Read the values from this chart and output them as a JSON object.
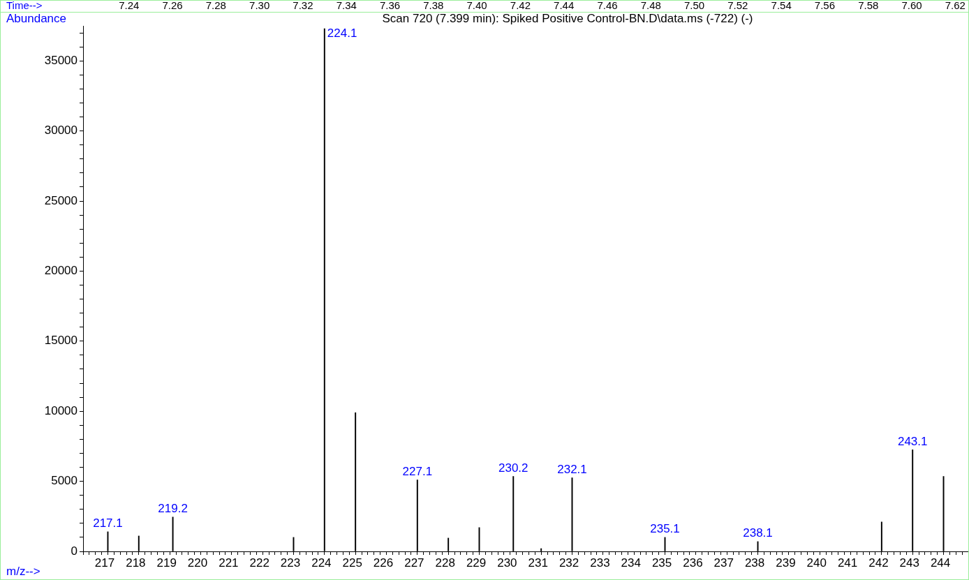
{
  "chart_data": {
    "type": "bar",
    "title": "Scan 720 (7.399 min): Spiked Positive Control-BN.D\\data.ms (-722) (-)",
    "xlabel": "m/z-->",
    "ylabel": "Abundance",
    "x2label": "Time-->",
    "x": [
      217.1,
      218.1,
      219.2,
      223.1,
      224.1,
      225.1,
      227.1,
      228.1,
      229.1,
      230.2,
      231.1,
      232.1,
      235.1,
      238.1,
      242.1,
      243.1,
      244.1
    ],
    "series": [
      {
        "color": "#000000",
        "values": [
          1400,
          1100,
          2450,
          1000,
          37300,
          9900,
          5100,
          950,
          1700,
          5350,
          200,
          5250,
          1000,
          700,
          2100,
          7250,
          5350
        ]
      }
    ],
    "annotations": [
      {
        "text": "217.1",
        "x": 217.1,
        "y": 1400
      },
      {
        "text": "219.2",
        "x": 219.2,
        "y": 2450
      },
      {
        "text": "224.1",
        "x": 224.1,
        "y": 37300
      },
      {
        "text": "227.1",
        "x": 227.1,
        "y": 5100
      },
      {
        "text": "230.2",
        "x": 230.2,
        "y": 5350
      },
      {
        "text": "232.1",
        "x": 232.1,
        "y": 5250
      },
      {
        "text": "235.1",
        "x": 235.1,
        "y": 1000
      },
      {
        "text": "238.1",
        "x": 238.1,
        "y": 700
      },
      {
        "text": "243.1",
        "x": 243.1,
        "y": 7250
      }
    ],
    "xlim": [
      216.3,
      244.9
    ],
    "xticks": [
      {
        "value": 216.4,
        "label": null
      },
      {
        "value": 216.6,
        "label": null
      },
      {
        "value": 216.8,
        "label": null
      },
      217,
      {
        "value": 217.2,
        "label": null
      },
      {
        "value": 217.4,
        "label": null
      },
      {
        "value": 217.6,
        "label": null
      },
      {
        "value": 217.8,
        "label": null
      },
      218,
      {
        "value": 218.2,
        "label": null
      },
      {
        "value": 218.4,
        "label": null
      },
      {
        "value": 218.6,
        "label": null
      },
      {
        "value": 218.8,
        "label": null
      },
      219,
      {
        "value": 219.2,
        "label": null
      },
      {
        "value": 219.4,
        "label": null
      },
      {
        "value": 219.6,
        "label": null
      },
      {
        "value": 219.8,
        "label": null
      },
      220,
      {
        "value": 220.2,
        "label": null
      },
      {
        "value": 220.4,
        "label": null
      },
      {
        "value": 220.6,
        "label": null
      },
      {
        "value": 220.8,
        "label": null
      },
      221,
      {
        "value": 221.2,
        "label": null
      },
      {
        "value": 221.4,
        "label": null
      },
      {
        "value": 221.6,
        "label": null
      },
      {
        "value": 221.8,
        "label": null
      },
      222,
      {
        "value": 222.2,
        "label": null
      },
      {
        "value": 222.4,
        "label": null
      },
      {
        "value": 222.6,
        "label": null
      },
      {
        "value": 222.8,
        "label": null
      },
      223,
      {
        "value": 223.2,
        "label": null
      },
      {
        "value": 223.4,
        "label": null
      },
      {
        "value": 223.6,
        "label": null
      },
      {
        "value": 223.8,
        "label": null
      },
      224,
      {
        "value": 224.2,
        "label": null
      },
      {
        "value": 224.4,
        "label": null
      },
      {
        "value": 224.6,
        "label": null
      },
      {
        "value": 224.8,
        "label": null
      },
      225,
      {
        "value": 225.2,
        "label": null
      },
      {
        "value": 225.4,
        "label": null
      },
      {
        "value": 225.6,
        "label": null
      },
      {
        "value": 225.8,
        "label": null
      },
      226,
      {
        "value": 226.2,
        "label": null
      },
      {
        "value": 226.4,
        "label": null
      },
      {
        "value": 226.6,
        "label": null
      },
      {
        "value": 226.8,
        "label": null
      },
      227,
      {
        "value": 227.2,
        "label": null
      },
      {
        "value": 227.4,
        "label": null
      },
      {
        "value": 227.6,
        "label": null
      },
      {
        "value": 227.8,
        "label": null
      },
      228,
      {
        "value": 228.2,
        "label": null
      },
      {
        "value": 228.4,
        "label": null
      },
      {
        "value": 228.6,
        "label": null
      },
      {
        "value": 228.8,
        "label": null
      },
      229,
      {
        "value": 229.2,
        "label": null
      },
      {
        "value": 229.4,
        "label": null
      },
      {
        "value": 229.6,
        "label": null
      },
      {
        "value": 229.8,
        "label": null
      },
      230,
      {
        "value": 230.2,
        "label": null
      },
      {
        "value": 230.4,
        "label": null
      },
      {
        "value": 230.6,
        "label": null
      },
      {
        "value": 230.8,
        "label": null
      },
      231,
      {
        "value": 231.2,
        "label": null
      },
      {
        "value": 231.4,
        "label": null
      },
      {
        "value": 231.6,
        "label": null
      },
      {
        "value": 231.8,
        "label": null
      },
      232,
      {
        "value": 232.2,
        "label": null
      },
      {
        "value": 232.4,
        "label": null
      },
      {
        "value": 232.6,
        "label": null
      },
      {
        "value": 232.8,
        "label": null
      },
      233,
      {
        "value": 233.2,
        "label": null
      },
      {
        "value": 233.4,
        "label": null
      },
      {
        "value": 233.6,
        "label": null
      },
      {
        "value": 233.8,
        "label": null
      },
      234,
      {
        "value": 234.2,
        "label": null
      },
      {
        "value": 234.4,
        "label": null
      },
      {
        "value": 234.6,
        "label": null
      },
      {
        "value": 234.8,
        "label": null
      },
      235,
      {
        "value": 235.2,
        "label": null
      },
      {
        "value": 235.4,
        "label": null
      },
      {
        "value": 235.6,
        "label": null
      },
      {
        "value": 235.8,
        "label": null
      },
      236,
      {
        "value": 236.2,
        "label": null
      },
      {
        "value": 236.4,
        "label": null
      },
      {
        "value": 236.6,
        "label": null
      },
      {
        "value": 236.8,
        "label": null
      },
      237,
      {
        "value": 237.2,
        "label": null
      },
      {
        "value": 237.4,
        "label": null
      },
      {
        "value": 237.6,
        "label": null
      },
      {
        "value": 237.8,
        "label": null
      },
      238,
      {
        "value": 238.2,
        "label": null
      },
      {
        "value": 238.4,
        "label": null
      },
      {
        "value": 238.6,
        "label": null
      },
      {
        "value": 238.8,
        "label": null
      },
      239,
      {
        "value": 239.2,
        "label": null
      },
      {
        "value": 239.4,
        "label": null
      },
      {
        "value": 239.6,
        "label": null
      },
      {
        "value": 239.8,
        "label": null
      },
      240,
      {
        "value": 240.2,
        "label": null
      },
      {
        "value": 240.4,
        "label": null
      },
      {
        "value": 240.6,
        "label": null
      },
      {
        "value": 240.8,
        "label": null
      },
      241,
      {
        "value": 241.2,
        "label": null
      },
      {
        "value": 241.4,
        "label": null
      },
      {
        "value": 241.6,
        "label": null
      },
      {
        "value": 241.8,
        "label": null
      },
      242,
      {
        "value": 242.2,
        "label": null
      },
      {
        "value": 242.4,
        "label": null
      },
      {
        "value": 242.6,
        "label": null
      },
      {
        "value": 242.8,
        "label": null
      },
      243,
      {
        "value": 243.2,
        "label": null
      },
      {
        "value": 243.4,
        "label": null
      },
      {
        "value": 243.6,
        "label": null
      },
      {
        "value": 243.8,
        "label": null
      },
      244,
      {
        "value": 244.2,
        "label": null
      },
      {
        "value": 244.4,
        "label": null
      },
      {
        "value": 244.6,
        "label": null
      },
      {
        "value": 244.8,
        "label": null
      }
    ],
    "ylim": [
      0,
      37500
    ],
    "yticks": [
      0,
      {
        "value": 1000,
        "label": null
      },
      {
        "value": 2000,
        "label": null
      },
      {
        "value": 3000,
        "label": null
      },
      {
        "value": 4000,
        "label": null
      },
      5000,
      {
        "value": 6000,
        "label": null
      },
      {
        "value": 7000,
        "label": null
      },
      {
        "value": 8000,
        "label": null
      },
      {
        "value": 9000,
        "label": null
      },
      10000,
      {
        "value": 11000,
        "label": null
      },
      {
        "value": 12000,
        "label": null
      },
      {
        "value": 13000,
        "label": null
      },
      {
        "value": 14000,
        "label": null
      },
      15000,
      {
        "value": 16000,
        "label": null
      },
      {
        "value": 17000,
        "label": null
      },
      {
        "value": 18000,
        "label": null
      },
      {
        "value": 19000,
        "label": null
      },
      20000,
      {
        "value": 21000,
        "label": null
      },
      {
        "value": 22000,
        "label": null
      },
      {
        "value": 23000,
        "label": null
      },
      {
        "value": 24000,
        "label": null
      },
      25000,
      {
        "value": 26000,
        "label": null
      },
      {
        "value": 27000,
        "label": null
      },
      {
        "value": 28000,
        "label": null
      },
      {
        "value": 29000,
        "label": null
      },
      30000,
      {
        "value": 31000,
        "label": null
      },
      {
        "value": 32000,
        "label": null
      },
      {
        "value": 33000,
        "label": null
      },
      {
        "value": 34000,
        "label": null
      },
      35000,
      {
        "value": 36000,
        "label": null
      },
      {
        "value": 37000,
        "label": null
      }
    ],
    "x2lim": [
      7.181,
      7.626
    ],
    "x2ticks": [
      7.24,
      7.26,
      7.28,
      {
        "value": 7.3,
        "label": "7.30"
      },
      7.32,
      7.34,
      7.36,
      7.38,
      {
        "value": 7.4,
        "label": "7.40"
      },
      7.42,
      7.44,
      7.46,
      7.48,
      {
        "value": 7.5,
        "label": "7.50"
      },
      7.52,
      7.54,
      7.56,
      7.58,
      {
        "value": 7.6,
        "label": "7.60"
      },
      7.62
    ],
    "grid": false,
    "legend": false
  }
}
